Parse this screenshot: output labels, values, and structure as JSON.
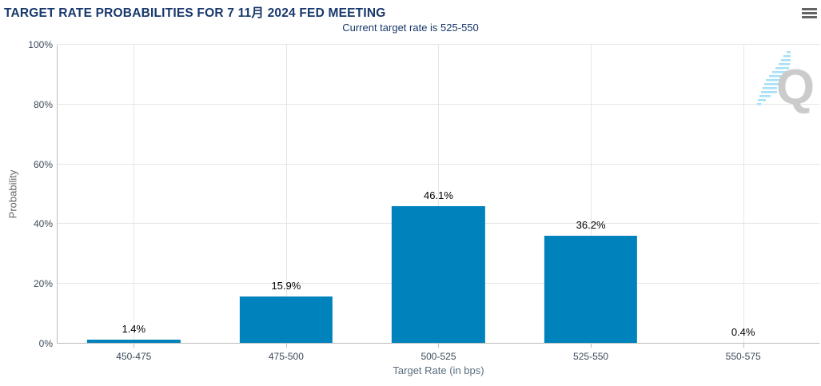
{
  "header": {
    "menu_icon": "hamburger-menu"
  },
  "icons": {
    "menu": "hamburger-menu-icon",
    "watermark": "quikstrike-q-logo"
  },
  "colors": {
    "c-title": "#17376b",
    "c-bar": "#0082bc",
    "c-grid": "#e6e6e6",
    "c-axis": "#bdbdbd",
    "c-ticktext": "#3c4a5a",
    "c-ylabel": "#666666",
    "c-xlabel": "#5a6e7f",
    "c-menu": "#636363",
    "c-wmark": "#cbcbcb",
    "c-wdash": "#a7e0f6"
  },
  "chart_data": {
    "type": "bar",
    "title": "TARGET RATE PROBABILITIES FOR 7 11月 2024 FED MEETING",
    "subtitle": "Current target rate is 525-550",
    "categories": [
      "450-475",
      "475-500",
      "500-525",
      "525-550",
      "550-575"
    ],
    "values": [
      1.4,
      15.9,
      46.1,
      36.2,
      0.4
    ],
    "value_labels": [
      "1.4%",
      "15.9%",
      "46.1%",
      "36.2%",
      "0.4%"
    ],
    "xlabel": "Target Rate (in bps)",
    "ylabel": "Probability",
    "ylim": [
      0,
      100
    ],
    "yticks": [
      "0%",
      "20%",
      "40%",
      "60%",
      "80%",
      "100%"
    ],
    "grid": true,
    "legend": false,
    "watermark_letter": "Q"
  }
}
